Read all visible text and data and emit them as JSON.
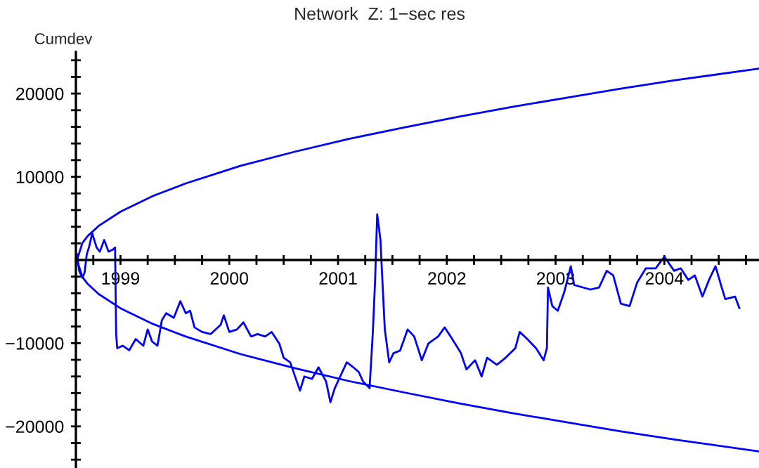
{
  "chart_data": {
    "type": "line",
    "title": "Network  Z: 1−sec res",
    "ylabel": "Cumdev",
    "xlim": [
      1998.59,
      2004.87
    ],
    "ylim": [
      -25000,
      25000
    ],
    "xticks": [
      {
        "value": 1998.75,
        "label": null
      },
      {
        "value": 1999,
        "label": "1999"
      },
      {
        "value": 1999.25,
        "label": null
      },
      {
        "value": 1999.5,
        "label": null
      },
      {
        "value": 1999.75,
        "label": null
      },
      {
        "value": 2000,
        "label": "2000"
      },
      {
        "value": 2000.25,
        "label": null
      },
      {
        "value": 2000.5,
        "label": null
      },
      {
        "value": 2000.75,
        "label": null
      },
      {
        "value": 2001,
        "label": "2001"
      },
      {
        "value": 2001.25,
        "label": null
      },
      {
        "value": 2001.5,
        "label": null
      },
      {
        "value": 2001.75,
        "label": null
      },
      {
        "value": 2002,
        "label": "2002"
      },
      {
        "value": 2002.25,
        "label": null
      },
      {
        "value": 2002.5,
        "label": null
      },
      {
        "value": 2002.75,
        "label": null
      },
      {
        "value": 2003,
        "label": "2003"
      },
      {
        "value": 2003.25,
        "label": null
      },
      {
        "value": 2003.5,
        "label": null
      },
      {
        "value": 2003.75,
        "label": null
      },
      {
        "value": 2004,
        "label": "2004"
      },
      {
        "value": 2004.25,
        "label": null
      },
      {
        "value": 2004.5,
        "label": null
      },
      {
        "value": 2004.75,
        "label": null
      }
    ],
    "yticks": [
      {
        "value": -24000,
        "label": null
      },
      {
        "value": -22000,
        "label": null
      },
      {
        "value": -20000,
        "label": "−20000"
      },
      {
        "value": -18000,
        "label": null
      },
      {
        "value": -16000,
        "label": null
      },
      {
        "value": -14000,
        "label": null
      },
      {
        "value": -12000,
        "label": null
      },
      {
        "value": -10000,
        "label": "−10000"
      },
      {
        "value": -8000,
        "label": null
      },
      {
        "value": -6000,
        "label": null
      },
      {
        "value": -4000,
        "label": null
      },
      {
        "value": -2000,
        "label": null
      },
      {
        "value": 2000,
        "label": null
      },
      {
        "value": 4000,
        "label": null
      },
      {
        "value": 6000,
        "label": null
      },
      {
        "value": 8000,
        "label": null
      },
      {
        "value": 10000,
        "label": "10000"
      },
      {
        "value": 12000,
        "label": null
      },
      {
        "value": 14000,
        "label": null
      },
      {
        "value": 16000,
        "label": null
      },
      {
        "value": 18000,
        "label": null
      },
      {
        "value": 20000,
        "label": "20000"
      },
      {
        "value": 22000,
        "label": null
      },
      {
        "value": 24000,
        "label": null
      }
    ],
    "grid": false,
    "legend": false,
    "marker": "none",
    "line_style": "solid",
    "series": [
      {
        "color": "#0000ff",
        "x": [
          1998.6,
          1998.65,
          1998.7,
          1998.8,
          1999.0,
          1999.3,
          1999.6,
          2000.1,
          2000.6,
          2001.1,
          2001.6,
          2002.1,
          2002.6,
          2003.1,
          2003.6,
          2004.1,
          2004.87
        ],
        "values": [
          0,
          2060,
          2900,
          4100,
          5800,
          7700,
          9200,
          11300,
          13000,
          14550,
          15900,
          17200,
          18400,
          19500,
          20600,
          21600,
          23000
        ]
      },
      {
        "color": "#0000ff",
        "x": [
          1998.6,
          1998.65,
          1998.7,
          1998.8,
          1999.0,
          1999.3,
          1999.6,
          2000.1,
          2000.6,
          2001.1,
          2001.6,
          2002.1,
          2002.6,
          2003.1,
          2003.6,
          2004.1,
          2004.87
        ],
        "values": [
          0,
          -2060,
          -2900,
          -4100,
          -5800,
          -7700,
          -9200,
          -11300,
          -13000,
          -14550,
          -15900,
          -17200,
          -18400,
          -19500,
          -20600,
          -21600,
          -23000
        ]
      },
      {
        "color": "#0000ff",
        "x": [
          1998.6,
          1998.62,
          1998.65,
          1998.67,
          1998.69,
          1998.71,
          1998.74,
          1998.78,
          1998.81,
          1998.85,
          1998.89,
          1998.93,
          1998.95,
          1998.96,
          1998.97,
          1999.02,
          1999.08,
          1999.14,
          1999.21,
          1999.25,
          1999.29,
          1999.34,
          1999.38,
          1999.42,
          1999.49,
          1999.55,
          1999.6,
          1999.64,
          1999.68,
          1999.75,
          1999.83,
          1999.92,
          1999.95,
          2000.0,
          2000.07,
          2000.13,
          2000.2,
          2000.26,
          2000.33,
          2000.39,
          2000.46,
          2000.5,
          2000.56,
          2000.65,
          2000.69,
          2000.76,
          2000.82,
          2000.89,
          2000.93,
          2000.97,
          2001.02,
          2001.08,
          2001.14,
          2001.19,
          2001.23,
          2001.29,
          2001.32,
          2001.34,
          2001.36,
          2001.39,
          2001.4,
          2001.43,
          2001.47,
          2001.51,
          2001.57,
          2001.64,
          2001.7,
          2001.77,
          2001.83,
          2001.92,
          2001.98,
          2002.05,
          2002.13,
          2002.18,
          2002.26,
          2002.32,
          2002.37,
          2002.46,
          2002.54,
          2002.63,
          2002.67,
          2002.74,
          2002.82,
          2002.89,
          2002.92,
          2002.93,
          2002.97,
          2003.02,
          2003.08,
          2003.14,
          2003.17,
          2003.25,
          2003.32,
          2003.4,
          2003.47,
          2003.53,
          2003.6,
          2003.68,
          2003.75,
          2003.83,
          2003.92,
          2004.0,
          2004.09,
          2004.15,
          2004.22,
          2004.28,
          2004.35,
          2004.41,
          2004.47,
          2004.52,
          2004.56,
          2004.65,
          2004.69
        ],
        "values": [
          700,
          -1300,
          -2150,
          -1500,
          700,
          1500,
          3200,
          1500,
          1000,
          2400,
          1000,
          1250,
          1500,
          -8900,
          -10600,
          -10300,
          -10850,
          -9500,
          -10300,
          -8350,
          -9800,
          -10300,
          -7250,
          -6400,
          -6950,
          -4950,
          -6400,
          -6100,
          -8100,
          -8650,
          -8900,
          -7800,
          -6650,
          -8650,
          -8350,
          -7500,
          -9200,
          -8900,
          -9200,
          -8650,
          -10050,
          -11750,
          -12300,
          -15700,
          -14000,
          -14300,
          -12900,
          -14600,
          -17100,
          -15400,
          -14000,
          -12300,
          -12900,
          -13450,
          -14600,
          -15400,
          -8650,
          -2700,
          5500,
          2400,
          -450,
          -8350,
          -12300,
          -11200,
          -10900,
          -8350,
          -9200,
          -12050,
          -10050,
          -9200,
          -8100,
          -9500,
          -11200,
          -13150,
          -12050,
          -14000,
          -11750,
          -12600,
          -11750,
          -10600,
          -8650,
          -9500,
          -10600,
          -12050,
          -10600,
          -3300,
          -5550,
          -6100,
          -3850,
          -750,
          -3000,
          -3300,
          -3550,
          -3300,
          -1300,
          -1850,
          -5250,
          -5550,
          -2700,
          -1000,
          -1000,
          400,
          -1300,
          -1000,
          -2400,
          -1850,
          -4400,
          -2400,
          -750,
          -3000,
          -4700,
          -4400,
          -5800
        ]
      }
    ]
  }
}
